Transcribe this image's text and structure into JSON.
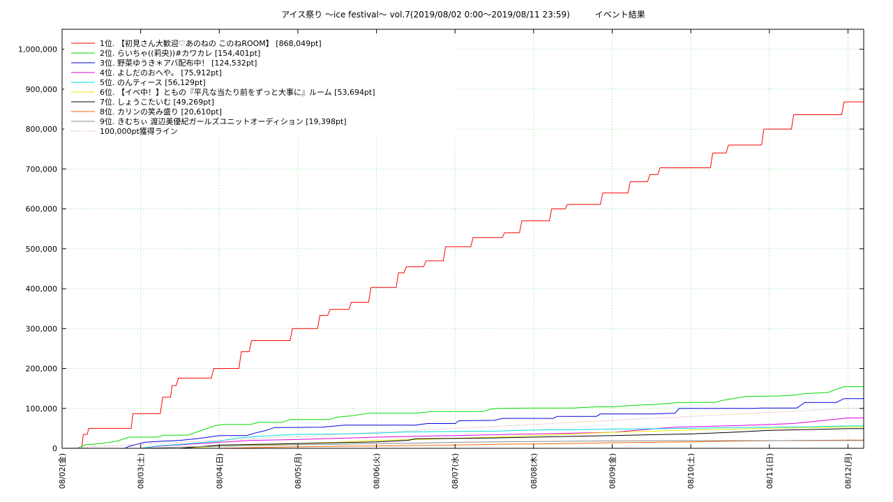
{
  "chart_data": {
    "type": "line",
    "title": "アイス祭り 〜ice festival〜 vol.7(2019/08/02 0:00〜2019/08/11 23:59)　　　イベント結果",
    "xlabel": "",
    "ylabel": "",
    "x_categories": [
      "08/02(金)",
      "08/03(土)",
      "08/04(日)",
      "08/05(月)",
      "08/06(火)",
      "08/07(水)",
      "08/08(木)",
      "08/09(金)",
      "08/10(土)",
      "08/11(日)",
      "08/12(月)"
    ],
    "xlim": [
      0,
      10.2
    ],
    "ylim": [
      0,
      1050000
    ],
    "y_ticks": [
      0,
      100000,
      200000,
      300000,
      400000,
      500000,
      600000,
      700000,
      800000,
      900000,
      1000000
    ],
    "y_tick_labels": [
      "0",
      "100,000",
      "200,000",
      "300,000",
      "400,000",
      "500,000",
      "600,000",
      "700,000",
      "800,000",
      "900,000",
      "1,000,000"
    ],
    "grid": true,
    "legend_position": "top-left",
    "series": [
      {
        "name": "1位. 【初見さん大歓迎♡あのねの このねROOM】 [868,049pt]",
        "color": "#ff0000",
        "type": "step",
        "points": [
          [
            0,
            0
          ],
          [
            0.25,
            0
          ],
          [
            0.27,
            35000
          ],
          [
            0.32,
            35000
          ],
          [
            0.34,
            50000
          ],
          [
            0.88,
            50000
          ],
          [
            0.9,
            87000
          ],
          [
            1.25,
            87000
          ],
          [
            1.28,
            128000
          ],
          [
            1.38,
            128000
          ],
          [
            1.4,
            157000
          ],
          [
            1.45,
            157000
          ],
          [
            1.48,
            176000
          ],
          [
            1.9,
            176000
          ],
          [
            1.93,
            200000
          ],
          [
            2.25,
            200000
          ],
          [
            2.28,
            242000
          ],
          [
            2.38,
            242000
          ],
          [
            2.41,
            270000
          ],
          [
            2.9,
            270000
          ],
          [
            2.93,
            300000
          ],
          [
            3.25,
            300000
          ],
          [
            3.28,
            333000
          ],
          [
            3.38,
            333000
          ],
          [
            3.41,
            348000
          ],
          [
            3.65,
            348000
          ],
          [
            3.68,
            366000
          ],
          [
            3.9,
            366000
          ],
          [
            3.93,
            403000
          ],
          [
            4.25,
            403000
          ],
          [
            4.28,
            440000
          ],
          [
            4.35,
            440000
          ],
          [
            4.38,
            455000
          ],
          [
            4.6,
            455000
          ],
          [
            4.63,
            470000
          ],
          [
            4.85,
            470000
          ],
          [
            4.88,
            505000
          ],
          [
            5.2,
            505000
          ],
          [
            5.23,
            528000
          ],
          [
            5.6,
            528000
          ],
          [
            5.63,
            540000
          ],
          [
            5.82,
            540000
          ],
          [
            5.85,
            570000
          ],
          [
            6.2,
            570000
          ],
          [
            6.23,
            600000
          ],
          [
            6.4,
            600000
          ],
          [
            6.43,
            611000
          ],
          [
            6.85,
            611000
          ],
          [
            6.88,
            640000
          ],
          [
            7.2,
            640000
          ],
          [
            7.23,
            668000
          ],
          [
            7.45,
            668000
          ],
          [
            7.48,
            686000
          ],
          [
            7.58,
            686000
          ],
          [
            7.61,
            703000
          ],
          [
            8.25,
            703000
          ],
          [
            8.28,
            740000
          ],
          [
            8.45,
            740000
          ],
          [
            8.48,
            760000
          ],
          [
            8.9,
            760000
          ],
          [
            8.93,
            800000
          ],
          [
            9.28,
            800000
          ],
          [
            9.31,
            836000
          ],
          [
            9.92,
            836000
          ],
          [
            9.95,
            868049
          ],
          [
            10.2,
            868049
          ]
        ]
      },
      {
        "name": "2位. らいちゃ((莉央))#カワカレ [154,401pt]",
        "color": "#00dd00",
        "type": "step",
        "points": [
          [
            0,
            0
          ],
          [
            0.2,
            0
          ],
          [
            0.25,
            5000
          ],
          [
            0.3,
            9000
          ],
          [
            0.5,
            12000
          ],
          [
            0.7,
            18000
          ],
          [
            0.85,
            28000
          ],
          [
            1.2,
            28000
          ],
          [
            1.3,
            33000
          ],
          [
            1.6,
            33000
          ],
          [
            1.7,
            40000
          ],
          [
            1.85,
            50000
          ],
          [
            1.95,
            57000
          ],
          [
            2.05,
            60000
          ],
          [
            2.4,
            60000
          ],
          [
            2.5,
            65000
          ],
          [
            2.8,
            65000
          ],
          [
            2.9,
            72000
          ],
          [
            3.4,
            72000
          ],
          [
            3.5,
            78000
          ],
          [
            3.7,
            82000
          ],
          [
            3.9,
            88000
          ],
          [
            4.5,
            88000
          ],
          [
            4.7,
            92000
          ],
          [
            5.35,
            92000
          ],
          [
            5.45,
            98000
          ],
          [
            5.55,
            100000
          ],
          [
            6.0,
            101000
          ],
          [
            6.5,
            101000
          ],
          [
            6.8,
            104000
          ],
          [
            7.0,
            104000
          ],
          [
            7.3,
            108000
          ],
          [
            7.55,
            110000
          ],
          [
            7.75,
            113000
          ],
          [
            7.85,
            115000
          ],
          [
            8.3,
            115000
          ],
          [
            8.4,
            120000
          ],
          [
            8.55,
            125000
          ],
          [
            8.7,
            130000
          ],
          [
            9.1,
            131000
          ],
          [
            9.3,
            133000
          ],
          [
            9.45,
            137000
          ],
          [
            9.75,
            140000
          ],
          [
            9.85,
            148000
          ],
          [
            9.95,
            154401
          ],
          [
            10.2,
            154401
          ]
        ]
      },
      {
        "name": "3位. 野菜ゆうき＊アバ配布中！ [124,532pt]",
        "color": "#0000dd",
        "type": "step",
        "points": [
          [
            0,
            0
          ],
          [
            0.8,
            0
          ],
          [
            0.85,
            5000
          ],
          [
            0.95,
            10000
          ],
          [
            1.05,
            15000
          ],
          [
            1.2,
            17000
          ],
          [
            1.5,
            20000
          ],
          [
            1.75,
            25000
          ],
          [
            2.0,
            32000
          ],
          [
            2.35,
            32000
          ],
          [
            2.45,
            38000
          ],
          [
            2.6,
            45000
          ],
          [
            2.7,
            52000
          ],
          [
            3.3,
            53000
          ],
          [
            3.6,
            58000
          ],
          [
            4.5,
            58000
          ],
          [
            4.55,
            60000
          ],
          [
            4.65,
            62000
          ],
          [
            5.0,
            62000
          ],
          [
            5.05,
            69000
          ],
          [
            5.5,
            70000
          ],
          [
            5.6,
            75000
          ],
          [
            6.25,
            75000
          ],
          [
            6.3,
            80000
          ],
          [
            6.8,
            80000
          ],
          [
            6.85,
            86000
          ],
          [
            7.5,
            86000
          ],
          [
            7.8,
            88000
          ],
          [
            7.85,
            100000
          ],
          [
            8.8,
            100000
          ],
          [
            8.9,
            101000
          ],
          [
            9.35,
            101000
          ],
          [
            9.45,
            115000
          ],
          [
            9.85,
            115000
          ],
          [
            9.95,
            124532
          ],
          [
            10.2,
            124532
          ]
        ]
      },
      {
        "name": "4位. よしだのおへや。 [75,912pt]",
        "color": "#dd00dd",
        "type": "step",
        "points": [
          [
            0,
            0
          ],
          [
            1.0,
            0
          ],
          [
            1.2,
            5000
          ],
          [
            1.6,
            10000
          ],
          [
            2.0,
            15000
          ],
          [
            2.4,
            20000
          ],
          [
            3.0,
            22000
          ],
          [
            3.5,
            25000
          ],
          [
            4.0,
            28000
          ],
          [
            4.5,
            30000
          ],
          [
            5.0,
            32000
          ],
          [
            5.5,
            34000
          ],
          [
            6.0,
            36000
          ],
          [
            6.5,
            38000
          ],
          [
            7.0,
            40000
          ],
          [
            7.3,
            45000
          ],
          [
            7.6,
            50000
          ],
          [
            7.8,
            53000
          ],
          [
            8.2,
            55000
          ],
          [
            8.6,
            57000
          ],
          [
            9.0,
            60000
          ],
          [
            9.3,
            62000
          ],
          [
            9.5,
            66000
          ],
          [
            9.8,
            72000
          ],
          [
            10.0,
            75912
          ],
          [
            10.2,
            75912
          ]
        ]
      },
      {
        "name": "5位. のんティース [56,129pt]",
        "color": "#00dddd",
        "type": "step",
        "points": [
          [
            0,
            0
          ],
          [
            1.0,
            0
          ],
          [
            1.2,
            6000
          ],
          [
            1.5,
            10000
          ],
          [
            2.0,
            18000
          ],
          [
            2.2,
            25000
          ],
          [
            2.5,
            30000
          ],
          [
            3.0,
            35000
          ],
          [
            3.5,
            36000
          ],
          [
            4.0,
            38000
          ],
          [
            4.4,
            41000
          ],
          [
            4.8,
            42000
          ],
          [
            5.5,
            43000
          ],
          [
            6.0,
            46000
          ],
          [
            6.5,
            47000
          ],
          [
            7.0,
            48000
          ],
          [
            7.5,
            49000
          ],
          [
            8.0,
            50000
          ],
          [
            8.5,
            52000
          ],
          [
            9.0,
            53000
          ],
          [
            9.5,
            54000
          ],
          [
            10.0,
            56129
          ],
          [
            10.2,
            56129
          ]
        ]
      },
      {
        "name": "6位. 【イベ中！】ともの『平凡な当たり前をずっと大事に』ルーム [53,694pt]",
        "color": "#e6e600",
        "type": "step",
        "points": [
          [
            0,
            0
          ],
          [
            1.5,
            0
          ],
          [
            2.0,
            5000
          ],
          [
            2.5,
            8000
          ],
          [
            3.0,
            12000
          ],
          [
            3.5,
            15000
          ],
          [
            4.0,
            20000
          ],
          [
            4.5,
            22000
          ],
          [
            5.0,
            25000
          ],
          [
            5.5,
            28000
          ],
          [
            6.0,
            32000
          ],
          [
            6.5,
            36000
          ],
          [
            7.0,
            40000
          ],
          [
            7.5,
            43000
          ],
          [
            8.0,
            46000
          ],
          [
            8.5,
            48000
          ],
          [
            9.0,
            50000
          ],
          [
            9.5,
            52000
          ],
          [
            10.0,
            53694
          ],
          [
            10.2,
            53694
          ]
        ]
      },
      {
        "name": "7位. しょうこたいむ [49,269pt]",
        "color": "#000000",
        "type": "step",
        "points": [
          [
            0,
            0
          ],
          [
            1.5,
            0
          ],
          [
            2.0,
            8000
          ],
          [
            2.5,
            10000
          ],
          [
            3.0,
            12000
          ],
          [
            3.5,
            14000
          ],
          [
            4.0,
            16000
          ],
          [
            4.4,
            20000
          ],
          [
            4.5,
            24000
          ],
          [
            5.0,
            25000
          ],
          [
            5.5,
            26000
          ],
          [
            6.0,
            28000
          ],
          [
            6.5,
            30000
          ],
          [
            7.0,
            32000
          ],
          [
            7.5,
            34000
          ],
          [
            8.0,
            36000
          ],
          [
            8.5,
            40000
          ],
          [
            9.0,
            45000
          ],
          [
            9.5,
            47000
          ],
          [
            10.0,
            49269
          ],
          [
            10.2,
            49269
          ]
        ]
      },
      {
        "name": "8位. カリンの笑み盛り [20,610pt]",
        "color": "#ff6600",
        "type": "step",
        "points": [
          [
            0,
            0
          ],
          [
            2.0,
            0
          ],
          [
            2.5,
            2000
          ],
          [
            3.0,
            4000
          ],
          [
            3.5,
            5000
          ],
          [
            4.0,
            6000
          ],
          [
            4.5,
            7000
          ],
          [
            5.0,
            8000
          ],
          [
            5.5,
            10000
          ],
          [
            6.0,
            11000
          ],
          [
            6.5,
            12000
          ],
          [
            7.0,
            14000
          ],
          [
            7.5,
            15000
          ],
          [
            8.0,
            16000
          ],
          [
            8.5,
            18000
          ],
          [
            9.0,
            19000
          ],
          [
            9.5,
            20000
          ],
          [
            10.0,
            20610
          ],
          [
            10.2,
            20610
          ]
        ]
      },
      {
        "name": "9位. きむちぃ 渡辺美優紀ガールズユニットオーディション [19,398pt]",
        "color": "#888888",
        "type": "step",
        "points": [
          [
            0,
            0
          ],
          [
            1.0,
            0
          ],
          [
            1.5,
            3000
          ],
          [
            2.0,
            5000
          ],
          [
            2.5,
            7000
          ],
          [
            3.0,
            9000
          ],
          [
            3.5,
            10000
          ],
          [
            4.0,
            12000
          ],
          [
            4.5,
            13000
          ],
          [
            5.0,
            15000
          ],
          [
            5.5,
            16000
          ],
          [
            6.0,
            17000
          ],
          [
            6.5,
            18000
          ],
          [
            7.0,
            18500
          ],
          [
            7.5,
            19000
          ],
          [
            8.0,
            19200
          ],
          [
            9.0,
            19300
          ],
          [
            10.0,
            19398
          ],
          [
            10.2,
            19398
          ]
        ]
      },
      {
        "name": "100,000pt獲得ライン",
        "color": "#cc6666",
        "type": "dotted",
        "points": [
          [
            0,
            0
          ],
          [
            10,
            100000
          ],
          [
            10.2,
            100000
          ]
        ]
      }
    ]
  }
}
